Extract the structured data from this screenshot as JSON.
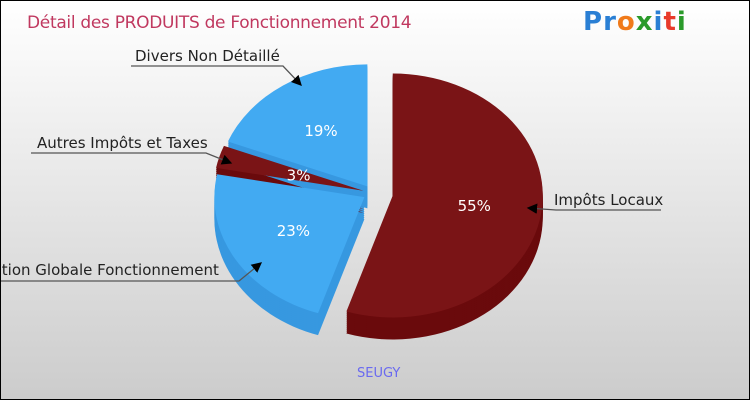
{
  "chart_data": {
    "type": "pie",
    "title": "Détail des PRODUITS de Fonctionnement 2014",
    "subtitle": "SEUGY",
    "slices": [
      {
        "label": "Impôts Locaux",
        "value": 55,
        "pct_label": "55%",
        "color": "#7a1416",
        "side_color": "#6a0a0c"
      },
      {
        "label": "Dotation Globale Fonctionnement",
        "value": 23,
        "pct_label": "23%",
        "color": "#42aaf2",
        "side_color": "#3798e0"
      },
      {
        "label": "Autres Impôts et Taxes",
        "value": 3,
        "pct_label": "3%",
        "color": "#7a1416",
        "side_color": "#6a0a0c"
      },
      {
        "label": "Divers Non Détaillé",
        "value": 19,
        "pct_label": "19%",
        "color": "#42aaf2",
        "side_color": "#3798e0"
      }
    ]
  },
  "logo": {
    "letters": [
      "P",
      "r",
      "o",
      "x",
      "i",
      "t",
      "i"
    ],
    "colors": [
      "#2a7fd4",
      "#2a7fd4",
      "#f07a1a",
      "#2a9a2a",
      "#2a7fd4",
      "#e83a2a",
      "#2a9a2a"
    ]
  }
}
